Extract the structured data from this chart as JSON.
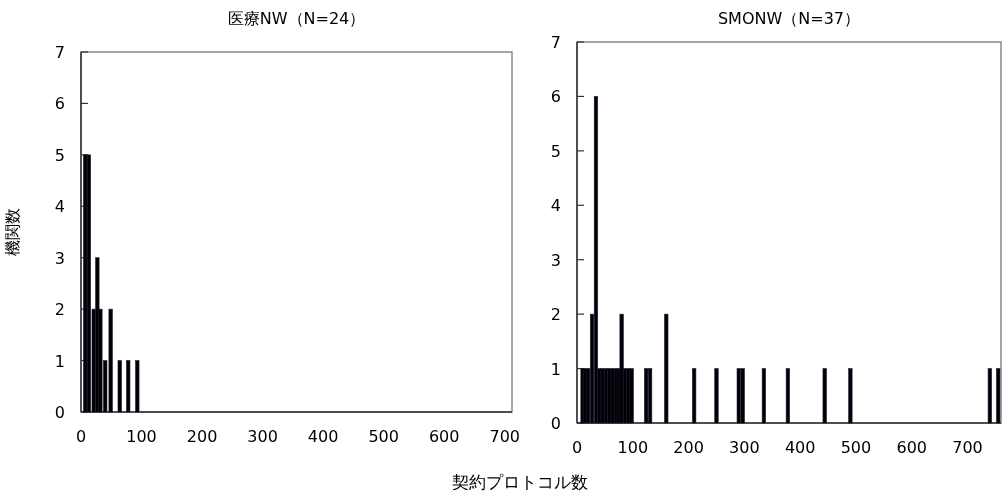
{
  "chart_data": [
    {
      "type": "bar",
      "title": "医療NW（N=24）",
      "ylabel": "機関数",
      "xlabel": "契約プロトコル数",
      "color": "#000000",
      "x": [
        7,
        13,
        21,
        27,
        32,
        40,
        49,
        64,
        78,
        93
      ],
      "values": [
        5,
        5,
        2,
        3,
        2,
        1,
        2,
        1,
        1,
        1
      ],
      "xlim": [
        0,
        712
      ],
      "ylim": [
        0,
        7
      ],
      "xticks": [
        0,
        100,
        200,
        300,
        400,
        500,
        600,
        700
      ],
      "yticks": [
        0,
        1,
        2,
        3,
        4,
        5,
        6,
        7
      ],
      "grid": false
    },
    {
      "type": "bar",
      "title": "SMONW（N=37）",
      "color": "#000000",
      "x": [
        10,
        15,
        20,
        27,
        34,
        40,
        46,
        52,
        58,
        64,
        70,
        75,
        80,
        86,
        92,
        98,
        124,
        131,
        160,
        210,
        250,
        290,
        297,
        335,
        378,
        444,
        490,
        740,
        755
      ],
      "values": [
        1,
        1,
        1,
        2,
        6,
        1,
        1,
        1,
        1,
        1,
        1,
        1,
        2,
        1,
        1,
        1,
        1,
        1,
        2,
        1,
        1,
        1,
        1,
        1,
        1,
        1,
        1,
        1,
        1
      ],
      "xlim": [
        0,
        760
      ],
      "ylim": [
        0,
        7
      ],
      "xticks": [
        0,
        100,
        200,
        300,
        400,
        500,
        600,
        700
      ],
      "yticks": [
        0,
        1,
        2,
        3,
        4,
        5,
        6,
        7
      ],
      "grid": false
    }
  ]
}
